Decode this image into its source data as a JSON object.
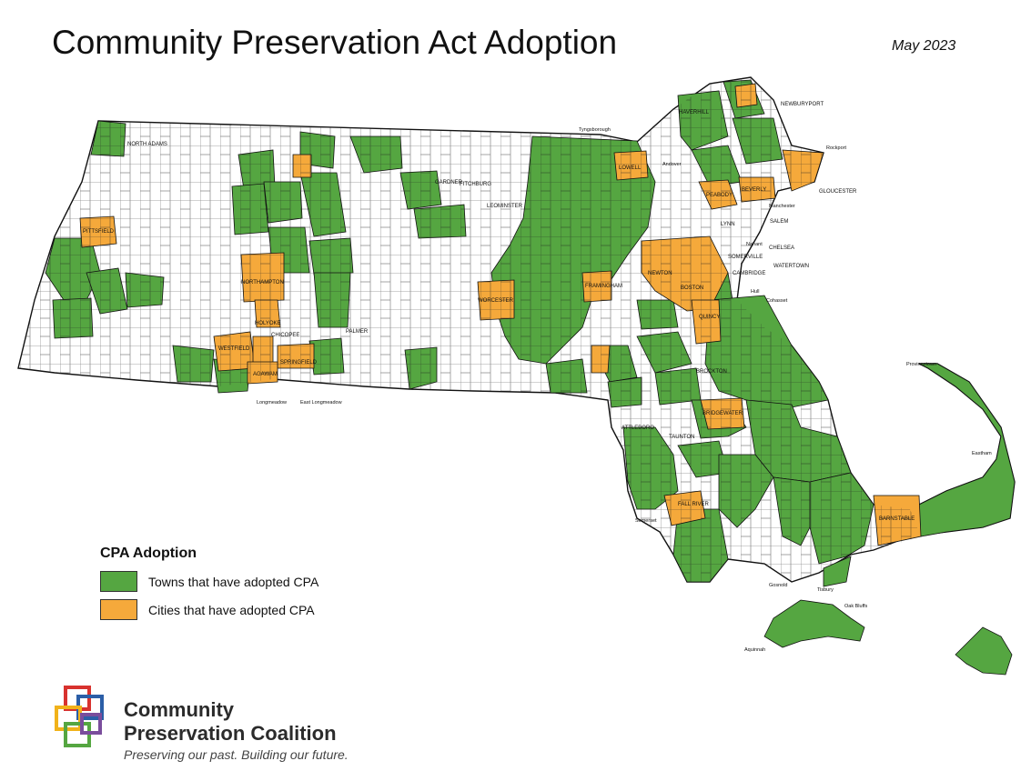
{
  "title": "Community Preservation Act Adoption",
  "date": "May 2023",
  "legend": {
    "title": "CPA Adoption",
    "items": [
      {
        "label": "Towns that have adopted CPA",
        "color": "#55a641"
      },
      {
        "label": "Cities that have adopted CPA",
        "color": "#f5a93b"
      }
    ]
  },
  "colors": {
    "town": "#55a641",
    "city": "#f5a93b",
    "none": "#ffffff",
    "border": "#111111"
  },
  "logo": {
    "name_line1": "Community",
    "name_line2": "Preservation Coalition",
    "tagline": "Preserving our past. Building our future."
  },
  "map_labels": {
    "newburyport": "NEWBURYPORT",
    "gloucester": "GLOUCESTER",
    "manchester": "Manchester",
    "salem": "SALEM",
    "chelsea": "CHELSEA",
    "watertown": "WATERTOWN",
    "rockport": "Rockport",
    "provincetown": "Provincetown",
    "eastham": "Eastham",
    "aquinnah": "Aquinnah",
    "oak_bluffs": "Oak Bluffs",
    "tisbury": "Tisbury",
    "gosnold": "Gosnold",
    "somerset": "Somerset",
    "longmeadow": "Longmeadow",
    "east_longmeadow": "East Longmeadow",
    "tyngsborough": "Tyngsborough",
    "haverhill": "HAVERHILL",
    "andover": "Andover",
    "lowell": "LOWELL",
    "pittsfield": "PITTSFIELD",
    "northampton": "NORTHAMPTON",
    "holyoke": "HOLYOKE",
    "westfield": "WESTFIELD",
    "chicopee": "CHICOPEE",
    "springfield": "SPRINGFIELD",
    "agawam": "AGAWAM",
    "worcester": "WORCESTER",
    "framingham": "FRAMINGHAM",
    "newton": "NEWTON",
    "boston": "BOSTON",
    "quincy": "QUINCY",
    "beverly": "BEVERLY",
    "peabody": "PEABODY",
    "lynn": "LYNN",
    "bridgewater": "BRIDGEWATER",
    "fall_river": "FALL RIVER",
    "barnstable": "BARNSTABLE",
    "brockton": "BROCKTON",
    "taunton": "TAUNTON",
    "attleboro": "ATTLEBORO",
    "north_adams": "NORTH ADAMS",
    "gardner": "GARDNER",
    "leominster": "LEOMINSTER",
    "fitchburg": "FITCHBURG",
    "palmer": "PALMER",
    "cambridge": "CAMBRIDGE",
    "somerville": "SOMERVILLE",
    "nahant": "Nahant",
    "hull": "Hull",
    "cohasset": "Cohasset"
  }
}
